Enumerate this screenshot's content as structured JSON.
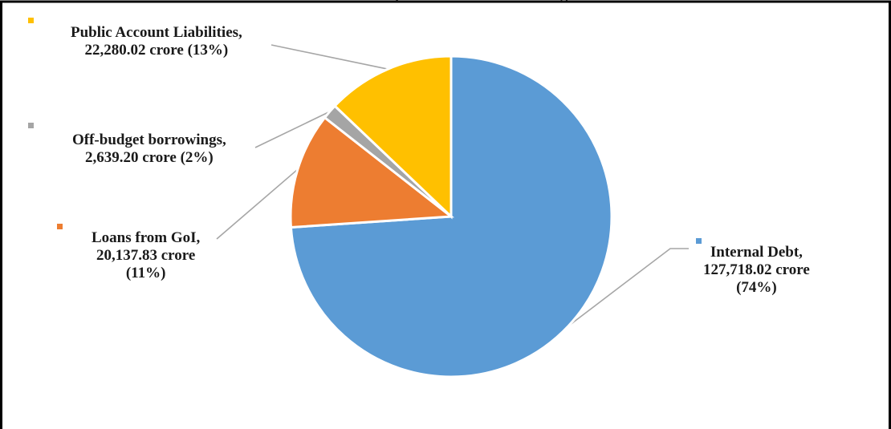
{
  "chart_data": {
    "type": "pie",
    "title_fragment": "p",
    "title_fragment_right": "g",
    "series": [
      {
        "name": "Internal Debt",
        "label_lines": [
          "Internal Debt,",
          "127,718.02 crore",
          "(74%)"
        ],
        "value": 127718.02,
        "percent": 74,
        "color": "#5b9bd5"
      },
      {
        "name": "Loans from GoI",
        "label_lines": [
          "Loans from GoI,",
          "20,137.83 crore",
          "(11%)"
        ],
        "value": 20137.83,
        "percent": 11,
        "color": "#ed7d31"
      },
      {
        "name": "Off-budget borrowings",
        "label_lines": [
          "Off-budget borrowings,",
          "2,639.20 crore (2%)"
        ],
        "value": 2639.2,
        "percent": 2,
        "color": "#a5a5a5"
      },
      {
        "name": "Public Account Liabilities",
        "label_lines": [
          "Public Account Liabilities,",
          "22,280.02 crore (13%)"
        ],
        "value": 22280.02,
        "percent": 13,
        "color": "#ffc000"
      }
    ],
    "legend": "inline-with-labels",
    "leader_line_color": "#a6a6a6"
  }
}
